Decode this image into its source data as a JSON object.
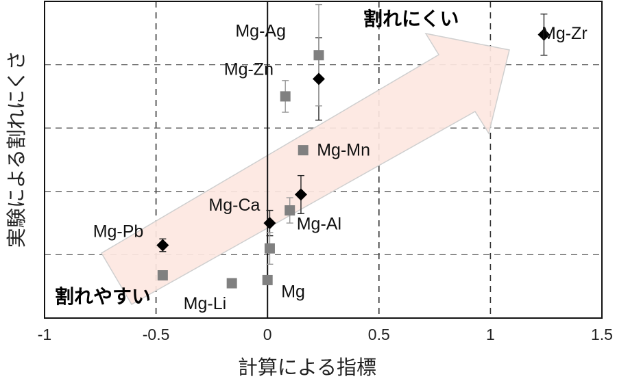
{
  "chart_data": {
    "type": "scatter",
    "xlabel": "計算による指標",
    "ylabel": "実験による割れにくさ",
    "xlim": [
      -1,
      1.5
    ],
    "x_ticks": [
      "-1",
      "-0.5",
      "0",
      "0.5",
      "1",
      "1.5"
    ],
    "grid": "dashed, both axes",
    "annotations": {
      "high": "割れにくい",
      "low": "割れやすい",
      "arrow_color": "#fde7e1"
    },
    "series": [
      {
        "marker": "diamond",
        "color": "#000000",
        "points": [
          {
            "label": "Mg-Zr",
            "x": 1.24,
            "y": 0.895,
            "err": 0.065
          },
          {
            "label": "Mg-Zn",
            "x": 0.23,
            "y": 0.755,
            "err": 0.13
          },
          {
            "label": "",
            "x": 0.15,
            "y": 0.39,
            "err": 0.06
          },
          {
            "label": "Mg-Ca",
            "x": 0.01,
            "y": 0.3,
            "err": 0.04
          },
          {
            "label": "Mg-Pb",
            "x": -0.47,
            "y": 0.23,
            "err": 0.02
          }
        ]
      },
      {
        "marker": "square",
        "color": "#808080",
        "points": [
          {
            "label": "Mg-Ag",
            "x": 0.23,
            "y": 0.83,
            "err": 0.16
          },
          {
            "label": "",
            "x": 0.08,
            "y": 0.7,
            "err": 0.05
          },
          {
            "label": "Mg-Mn",
            "x": 0.16,
            "y": 0.53,
            "err": 0
          },
          {
            "label": "Mg-Al",
            "x": 0.1,
            "y": 0.34,
            "err": 0.04
          },
          {
            "label": "",
            "x": 0.01,
            "y": 0.22,
            "err": 0.05
          },
          {
            "label": "Mg",
            "x": 0.0,
            "y": 0.12,
            "err": 0
          },
          {
            "label": "Mg-Li",
            "x": -0.16,
            "y": 0.11,
            "err": 0
          },
          {
            "label": "",
            "x": -0.47,
            "y": 0.135,
            "err": 0
          }
        ]
      }
    ]
  }
}
